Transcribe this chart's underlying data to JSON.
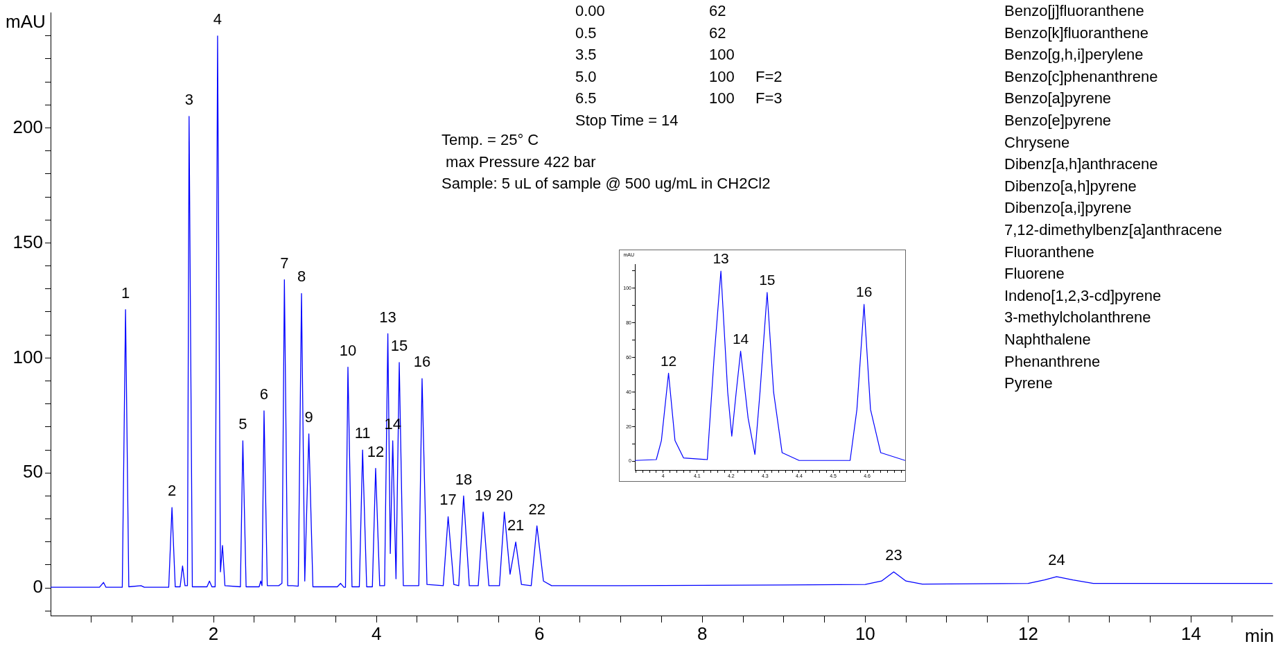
{
  "chart_data": [
    {
      "type": "line",
      "color": "#0000ff",
      "marker": "none",
      "grid": false,
      "legend": false,
      "xlabel": "min",
      "ylabel": "mAU",
      "xlim": [
        0,
        15
      ],
      "ylim": [
        -12,
        250
      ],
      "xticks": [
        {
          "value": 0.5,
          "label": null
        },
        {
          "value": 1,
          "label": null
        },
        {
          "value": 1.5,
          "label": null
        },
        2,
        {
          "value": 2.5,
          "label": null
        },
        {
          "value": 3,
          "label": null
        },
        {
          "value": 3.5,
          "label": null
        },
        4,
        {
          "value": 4.5,
          "label": null
        },
        {
          "value": 5,
          "label": null
        },
        {
          "value": 5.5,
          "label": null
        },
        6,
        {
          "value": 6.5,
          "label": null
        },
        {
          "value": 7,
          "label": null
        },
        {
          "value": 7.5,
          "label": null
        },
        8,
        {
          "value": 8.5,
          "label": null
        },
        {
          "value": 9,
          "label": null
        },
        {
          "value": 9.5,
          "label": null
        },
        10,
        {
          "value": 10.5,
          "label": null
        },
        {
          "value": 11,
          "label": null
        },
        {
          "value": 11.5,
          "label": null
        },
        12,
        {
          "value": 12.5,
          "label": null
        },
        {
          "value": 13,
          "label": null
        },
        {
          "value": 13.5,
          "label": null
        },
        14,
        {
          "value": 14.5,
          "label": null
        }
      ],
      "yticks": [
        {
          "value": -10,
          "label": null
        },
        0,
        {
          "value": 10,
          "label": null
        },
        {
          "value": 20,
          "label": null
        },
        {
          "value": 30,
          "label": null
        },
        {
          "value": 40,
          "label": null
        },
        50,
        {
          "value": 60,
          "label": null
        },
        {
          "value": 70,
          "label": null
        },
        {
          "value": 80,
          "label": null
        },
        {
          "value": 90,
          "label": null
        },
        100,
        {
          "value": 110,
          "label": null
        },
        {
          "value": 120,
          "label": null
        },
        {
          "value": 130,
          "label": null
        },
        {
          "value": 140,
          "label": null
        },
        150,
        {
          "value": 160,
          "label": null
        },
        {
          "value": 170,
          "label": null
        },
        {
          "value": 180,
          "label": null
        },
        {
          "value": 190,
          "label": null
        },
        200,
        {
          "value": 210,
          "label": null
        },
        {
          "value": 220,
          "label": null
        },
        {
          "value": 230,
          "label": null
        },
        {
          "value": 240,
          "label": null
        }
      ],
      "x": [
        0,
        0.6,
        0.65,
        0.68,
        0.88,
        0.92,
        0.96,
        1.11,
        1.15,
        1.45,
        1.49,
        1.53,
        1.59,
        1.62,
        1.65,
        1.68,
        1.7,
        1.74,
        1.92,
        1.95,
        1.98,
        2.02,
        2.05,
        2.085,
        2.11,
        2.14,
        2.33,
        2.36,
        2.4,
        2.56,
        2.58,
        2.595,
        2.62,
        2.66,
        2.8,
        2.84,
        2.87,
        2.91,
        2.97,
        3.04,
        3.08,
        3.12,
        3.17,
        3.22,
        3.52,
        3.56,
        3.6,
        3.62,
        3.65,
        3.7,
        3.79,
        3.83,
        3.88,
        3.95,
        3.99,
        4.04,
        4.1,
        4.14,
        4.17,
        4.2,
        4.24,
        4.28,
        4.33,
        4.52,
        4.56,
        4.62,
        4.82,
        4.88,
        4.95,
        5.01,
        5.07,
        5.14,
        5.25,
        5.31,
        5.38,
        5.51,
        5.57,
        5.64,
        5.71,
        5.78,
        5.9,
        5.97,
        6.05,
        6.15,
        7,
        9,
        10,
        10.2,
        10.35,
        10.5,
        10.7,
        12,
        12.2,
        12.35,
        12.55,
        12.8,
        15
      ],
      "values": [
        0.3,
        0.3,
        2.4,
        0.3,
        0.3,
        121,
        0.5,
        1,
        0.3,
        0.3,
        35,
        0.5,
        0.5,
        9.6,
        1,
        1,
        205,
        0.5,
        0.5,
        3,
        0.5,
        0.5,
        240,
        7,
        18.5,
        1,
        0.5,
        64,
        0.5,
        0.5,
        3,
        1,
        77,
        1,
        1,
        2,
        134,
        1,
        1,
        0.8,
        128,
        3,
        67,
        0.5,
        0.5,
        2,
        0.3,
        0.3,
        96,
        0.5,
        0.5,
        60,
        0.5,
        0.5,
        52,
        1,
        1,
        110.5,
        15,
        64,
        4,
        98,
        1,
        1,
        91,
        1.5,
        1,
        31,
        1.5,
        1,
        40,
        1,
        1,
        33,
        1,
        1,
        33,
        6,
        20,
        1.5,
        1,
        27,
        3,
        1,
        1,
        1.3,
        1.5,
        3,
        7,
        3,
        1.7,
        2,
        3.5,
        4.9,
        3.5,
        2,
        2
      ],
      "annotations": [
        "0.00\t62\n0.5\t62\n3.5\t100\n5.0\t100\tF=2\n6.5\t100\tF=3\nStop Time = 14",
        "Temp. = 25° C\n max Pressure 422 bar\nSample: 5 uL of sample @ 500 ug/mL in CH2Cl2",
        "Benzo[j]fluoranthene\nBenzo[k]fluoranthene\nBenzo[g,h,i]perylene\nBenzo[c]phenanthrene\nBenzo[a]pyrene\nBenzo[e]pyrene\nChrysene\nDibenz[a,h]anthracene\nDibenzo[a,h]pyrene\nDibenzo[a,i]pyrene\n7,12-dimethylbenz[a]anthracene\nFluoranthene\nFluorene\nIndeno[1,2,3-cd]pyrene\n3-methylcholanthrene\nNaphthalene\nPhenanthrene\nPyrene",
        {
          "text": "1",
          "x": 0.92,
          "y": 121
        },
        {
          "text": "2",
          "x": 1.49,
          "y": 35
        },
        {
          "text": "3",
          "x": 1.7,
          "y": 205
        },
        {
          "text": "4",
          "x": 2.05,
          "y": 240
        },
        {
          "text": "5",
          "x": 2.36,
          "y": 64
        },
        {
          "text": "6",
          "x": 2.62,
          "y": 77
        },
        {
          "text": "7",
          "x": 2.87,
          "y": 134
        },
        {
          "text": "8",
          "x": 3.08,
          "y": 128
        },
        {
          "text": "9",
          "x": 3.17,
          "y": 67
        },
        {
          "text": "10",
          "x": 3.65,
          "y": 96
        },
        {
          "text": "11",
          "x": 3.83,
          "y": 60
        },
        {
          "text": "12",
          "x": 3.99,
          "y": 52
        },
        {
          "text": "13",
          "x": 4.14,
          "y": 110.5
        },
        {
          "text": "14",
          "x": 4.2,
          "y": 64
        },
        {
          "text": "15",
          "x": 4.28,
          "y": 98
        },
        {
          "text": "16",
          "x": 4.56,
          "y": 91
        },
        {
          "text": "17",
          "x": 4.88,
          "y": 31
        },
        {
          "text": "18",
          "x": 5.07,
          "y": 40
        },
        {
          "text": "19",
          "x": 5.31,
          "y": 33
        },
        {
          "text": "20",
          "x": 5.57,
          "y": 33
        },
        {
          "text": "21",
          "x": 5.71,
          "y": 20
        },
        {
          "text": "22",
          "x": 5.97,
          "y": 27
        },
        {
          "text": "23",
          "x": 10.35,
          "y": 7
        },
        {
          "text": "24",
          "x": 12.35,
          "y": 4.9
        }
      ]
    },
    {
      "type": "line",
      "color": "#0000ff",
      "marker": "none",
      "grid": false,
      "legend": false,
      "ylabel": "mAU",
      "xlim": [
        3.917,
        4.712
      ],
      "ylim": [
        -5,
        114
      ],
      "xticks": [
        {
          "value": 3.92,
          "label": null
        },
        {
          "value": 3.94,
          "label": null
        },
        {
          "value": 3.96,
          "label": null
        },
        {
          "value": 3.98,
          "label": null
        },
        4,
        {
          "value": 4.02,
          "label": null
        },
        {
          "value": 4.04,
          "label": null
        },
        {
          "value": 4.06,
          "label": null
        },
        {
          "value": 4.08,
          "label": null
        },
        4.1,
        {
          "value": 4.12,
          "label": null
        },
        {
          "value": 4.14,
          "label": null
        },
        {
          "value": 4.16,
          "label": null
        },
        {
          "value": 4.18,
          "label": null
        },
        4.2,
        {
          "value": 4.22,
          "label": null
        },
        {
          "value": 4.24,
          "label": null
        },
        {
          "value": 4.26,
          "label": null
        },
        {
          "value": 4.28,
          "label": null
        },
        4.3,
        {
          "value": 4.32,
          "label": null
        },
        {
          "value": 4.34,
          "label": null
        },
        {
          "value": 4.36,
          "label": null
        },
        {
          "value": 4.38,
          "label": null
        },
        4.4,
        {
          "value": 4.42,
          "label": null
        },
        {
          "value": 4.44,
          "label": null
        },
        {
          "value": 4.46,
          "label": null
        },
        {
          "value": 4.48,
          "label": null
        },
        4.5,
        {
          "value": 4.52,
          "label": null
        },
        {
          "value": 4.54,
          "label": null
        },
        {
          "value": 4.56,
          "label": null
        },
        {
          "value": 4.58,
          "label": null
        },
        4.6,
        {
          "value": 4.62,
          "label": null
        },
        {
          "value": 4.64,
          "label": null
        },
        {
          "value": 4.66,
          "label": null
        },
        {
          "value": 4.68,
          "label": null
        },
        {
          "value": 4.7,
          "label": null
        }
      ],
      "yticks": [
        0,
        {
          "value": 10,
          "label": null
        },
        20,
        {
          "value": 30,
          "label": null
        },
        40,
        {
          "value": 50,
          "label": null
        },
        60,
        {
          "value": 70,
          "label": null
        },
        80,
        {
          "value": 90,
          "label": null
        },
        100,
        {
          "value": 110,
          "label": null
        }
      ],
      "x": [
        3.917,
        3.98,
        3.995,
        4.016,
        4.035,
        4.06,
        4.13,
        4.15,
        4.17,
        4.19,
        4.202,
        4.215,
        4.228,
        4.25,
        4.27,
        4.285,
        4.306,
        4.325,
        4.35,
        4.4,
        4.55,
        4.57,
        4.591,
        4.61,
        4.64,
        4.712
      ],
      "values": [
        0.5,
        1,
        12,
        51,
        12,
        2,
        1,
        60,
        110,
        40,
        14.6,
        40,
        63.7,
        25,
        4,
        40,
        97.6,
        40,
        5,
        0.5,
        0.5,
        30,
        90.7,
        30,
        5,
        0.5
      ],
      "annotations": [
        {
          "text": "12",
          "x": 4.016,
          "y": 51
        },
        {
          "text": "13",
          "x": 4.17,
          "y": 110
        },
        {
          "text": "14",
          "x": 4.228,
          "y": 63.7
        },
        {
          "text": "15",
          "x": 4.306,
          "y": 97.6
        },
        {
          "text": "16",
          "x": 4.591,
          "y": 90.7
        }
      ]
    }
  ]
}
